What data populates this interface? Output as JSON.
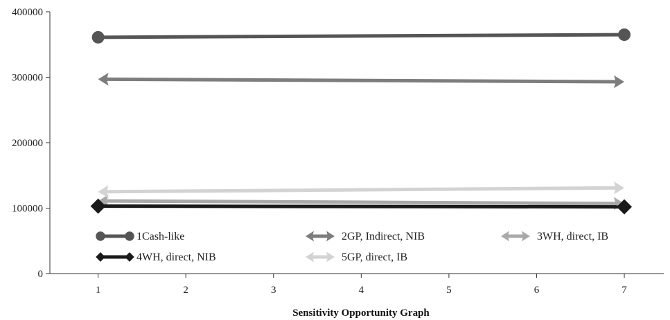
{
  "chart_data": {
    "type": "line",
    "title": "",
    "xlabel": "Sensitivity Opportunity Graph",
    "ylabel": "",
    "x": [
      1,
      7
    ],
    "x_ticks": [
      "1",
      "2",
      "3",
      "4",
      "5",
      "6",
      "7"
    ],
    "xlim": [
      0.45,
      7.45
    ],
    "y_ticks": [
      "0",
      "100000",
      "200000",
      "300000",
      "400000"
    ],
    "ylim": [
      0,
      400000
    ],
    "grid": false,
    "legend_position": "bottom-inside",
    "series": [
      {
        "name": "1Cash-like",
        "values": [
          361000,
          365000
        ],
        "color": "#555555",
        "marker": "circle"
      },
      {
        "name": "2GP, Indirect, NIB",
        "values": [
          297000,
          293000
        ],
        "color": "#7d7d7d",
        "marker": "arrow"
      },
      {
        "name": "3WH, direct, IB",
        "values": [
          111000,
          107000
        ],
        "color": "#a9a9a9",
        "marker": "arrow"
      },
      {
        "name": "4WH, direct, NIB",
        "values": [
          103000,
          102000
        ],
        "color": "#1a1a1a",
        "marker": "diamond"
      },
      {
        "name": "5GP, direct, IB",
        "values": [
          125000,
          131000
        ],
        "color": "#d3d3d3",
        "marker": "arrow"
      }
    ]
  }
}
